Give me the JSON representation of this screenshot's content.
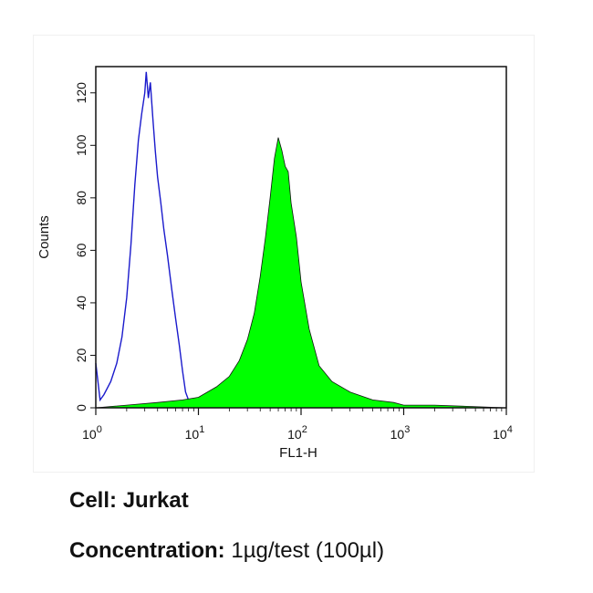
{
  "chart_data": {
    "type": "area",
    "title": "",
    "xlabel": "FL1-H",
    "ylabel": "Counts",
    "xscale": "log",
    "xlim": [
      1,
      10000
    ],
    "ylim": [
      0,
      130
    ],
    "y_ticks": [
      0,
      20,
      40,
      60,
      80,
      100,
      120
    ],
    "x_ticks": [
      {
        "base": "10",
        "exp": "0",
        "value": 1
      },
      {
        "base": "10",
        "exp": "1",
        "value": 10
      },
      {
        "base": "10",
        "exp": "2",
        "value": 100
      },
      {
        "base": "10",
        "exp": "3",
        "value": 1000
      },
      {
        "base": "10",
        "exp": "4",
        "value": 10000
      }
    ],
    "grid": false,
    "legend": "none",
    "series": [
      {
        "style": "outline",
        "color": "#1a1acc",
        "x": [
          1.0,
          1.1,
          1.2,
          1.4,
          1.6,
          1.8,
          2.0,
          2.2,
          2.4,
          2.6,
          2.8,
          3.0,
          3.1,
          3.25,
          3.4,
          3.6,
          3.8,
          4.0,
          4.3,
          4.6,
          5.0,
          5.5,
          6.0,
          6.5,
          7.0,
          7.5,
          8.0,
          9.0,
          10.0
        ],
        "y": [
          17,
          3,
          5,
          10,
          17,
          27,
          42,
          62,
          85,
          102,
          112,
          120,
          128,
          118,
          124,
          110,
          98,
          88,
          78,
          68,
          58,
          45,
          34,
          24,
          14,
          6,
          3,
          1,
          0
        ]
      },
      {
        "style": "filled",
        "color": "#00ff00",
        "x": [
          1.0,
          2.0,
          4.0,
          7.0,
          10.0,
          15.0,
          20.0,
          25.0,
          30.0,
          35.0,
          40.0,
          45.0,
          50.0,
          55.0,
          60.0,
          65.0,
          70.0,
          75.0,
          80.0,
          90.0,
          100.0,
          120.0,
          150.0,
          200.0,
          300.0,
          500.0,
          800.0,
          1000.0,
          2000.0,
          10000.0
        ],
        "y": [
          0,
          1,
          2,
          3,
          4,
          8,
          12,
          18,
          26,
          36,
          50,
          65,
          80,
          95,
          103,
          98,
          92,
          90,
          78,
          65,
          48,
          30,
          16,
          10,
          6,
          3,
          2,
          1,
          1,
          0
        ]
      }
    ]
  },
  "captions": {
    "cell_label": "Cell:",
    "cell_value": "Jurkat",
    "concentration_label": "Concentration:",
    "concentration_value": "1µg/test (100µl)"
  }
}
